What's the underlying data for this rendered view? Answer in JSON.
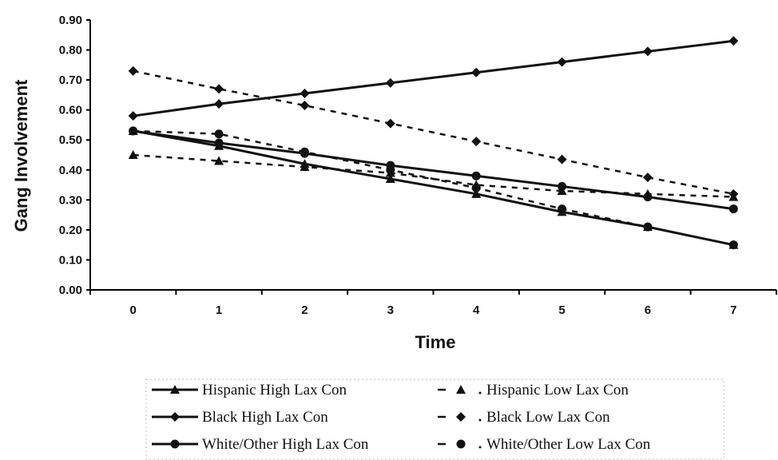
{
  "chart_data": {
    "type": "line",
    "xlabel": "Time",
    "ylabel": "Gang Involvement",
    "x": [
      0,
      1,
      2,
      3,
      4,
      5,
      6,
      7
    ],
    "xlim": [
      -0.5,
      7.5
    ],
    "ylim": [
      0,
      0.9
    ],
    "yticks": [
      "0.00",
      "0.10",
      "0.20",
      "0.30",
      "0.40",
      "0.50",
      "0.60",
      "0.70",
      "0.80",
      "0.90"
    ],
    "xticks": [
      "0",
      "1",
      "2",
      "3",
      "4",
      "5",
      "6",
      "7"
    ],
    "grid": false,
    "legend_position": "bottom",
    "series": [
      {
        "name": "Hispanic High Lax Con",
        "marker": "triangle",
        "dash": "solid",
        "values": [
          0.53,
          0.48,
          0.42,
          0.37,
          0.32,
          0.26,
          0.21,
          0.15
        ]
      },
      {
        "name": "Hispanic Low Lax Con",
        "marker": "triangle",
        "dash": "dashed",
        "values": [
          0.45,
          0.43,
          0.41,
          0.39,
          0.35,
          0.33,
          0.32,
          0.31
        ]
      },
      {
        "name": "Black High Lax Con",
        "marker": "diamond",
        "dash": "solid",
        "values": [
          0.58,
          0.62,
          0.655,
          0.69,
          0.725,
          0.76,
          0.795,
          0.83
        ]
      },
      {
        "name": "Black Low Lax Con",
        "marker": "diamond",
        "dash": "dashed",
        "values": [
          0.73,
          0.67,
          0.615,
          0.555,
          0.495,
          0.435,
          0.375,
          0.32
        ]
      },
      {
        "name": "White/Other High Lax Con",
        "marker": "circle",
        "dash": "solid",
        "values": [
          0.53,
          0.49,
          0.455,
          0.415,
          0.38,
          0.345,
          0.31,
          0.27
        ]
      },
      {
        "name": "White/Other Low Lax Con",
        "marker": "circle",
        "dash": "dashed",
        "values": [
          0.53,
          0.52,
          0.46,
          0.4,
          0.34,
          0.27,
          0.21,
          0.15
        ]
      }
    ]
  }
}
